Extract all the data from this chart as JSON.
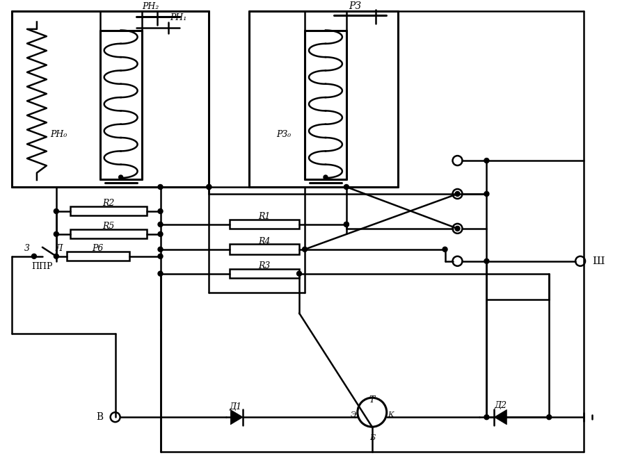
{
  "bg": "#ffffff",
  "lc": "#000000",
  "lw": 1.8,
  "lw2": 2.2,
  "fs": 9,
  "labels": {
    "RH2": "РН₂",
    "RH1": "РН₁",
    "RH0": "РН₀",
    "RZ": "РЗ",
    "RZ0": "РЗ₀",
    "R1": "R1",
    "R2": "R2",
    "R3": "R3",
    "R4": "R4",
    "R5": "R5",
    "R6": "Р6",
    "PPR": "ППР",
    "Z_sw": "3",
    "L_sw": "Л",
    "D1": "Д1",
    "D2": "Д2",
    "Tr": "Т",
    "E": "Э",
    "K": "К",
    "B_base": "Б",
    "V": "В",
    "Sh": "Ш"
  }
}
